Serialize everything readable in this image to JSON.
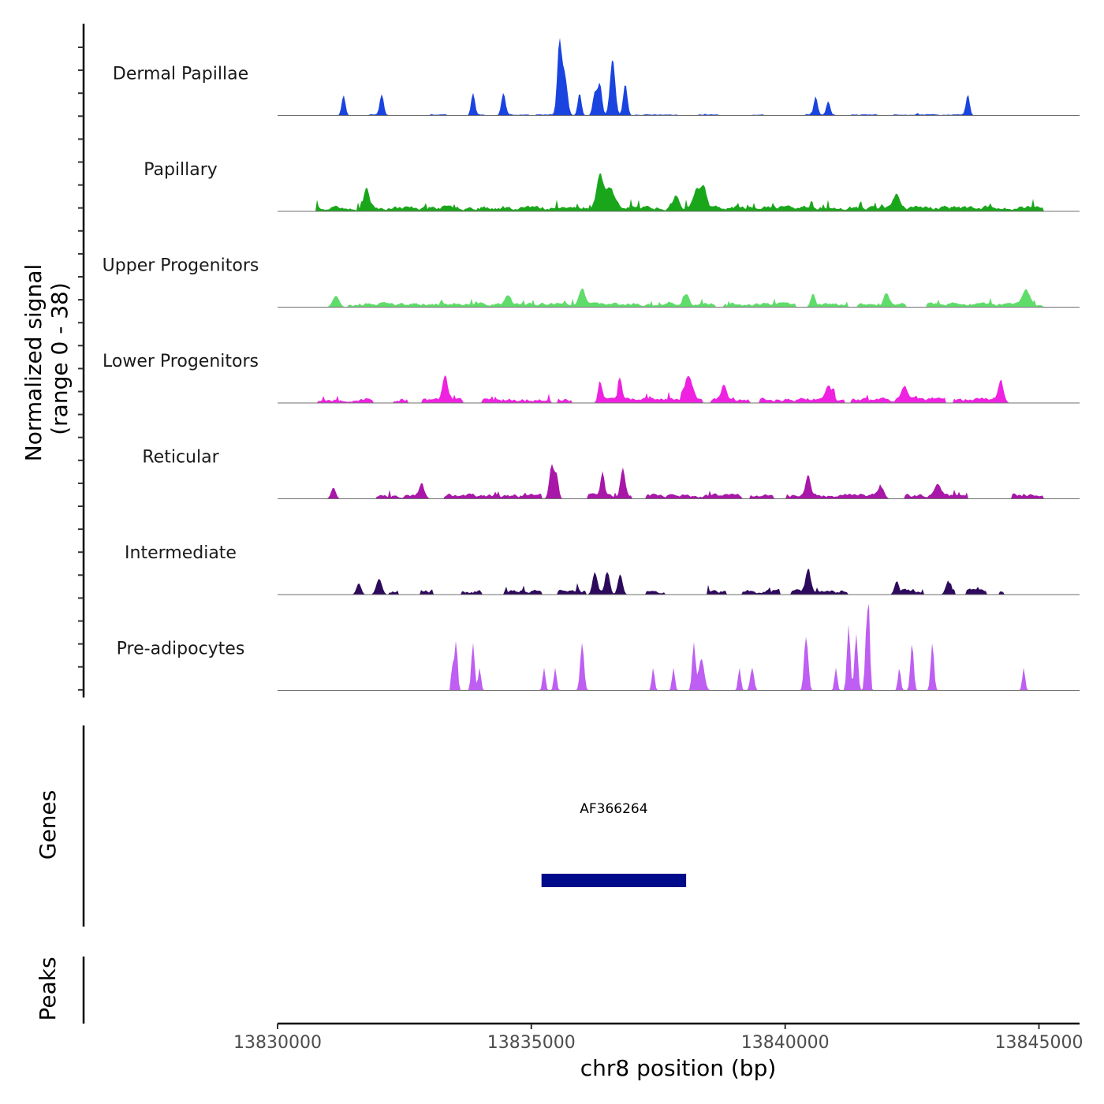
{
  "chart_data": {
    "type": "area",
    "title": "",
    "xlabel": "chr8 position (bp)",
    "ylabel": "Normalized signal",
    "ylabel_sub": "(range 0 - 38)",
    "xlim": [
      13830000,
      13845800
    ],
    "ylim": [
      0,
      38
    ],
    "x_ticks": [
      13830000,
      13835000,
      13840000,
      13845000
    ],
    "x_tick_labels": [
      "13830000",
      "13835000",
      "13840000",
      "13845000"
    ],
    "tracks": [
      {
        "name": "Dermal Papillae",
        "color": "#1a44e0",
        "range": [
          13831000,
          13843800
        ],
        "noise": 0.6,
        "gappy": 0.55,
        "seed": 11,
        "peaks": [
          [
            13835550,
            30,
            45
          ],
          [
            13835650,
            18,
            60
          ],
          [
            13836350,
            14,
            45
          ],
          [
            13836600,
            25,
            55
          ],
          [
            13836850,
            14,
            45
          ],
          [
            13836250,
            10,
            45
          ],
          [
            13835950,
            10,
            40
          ],
          [
            13833850,
            10,
            40
          ],
          [
            13832050,
            9,
            40
          ],
          [
            13834450,
            10,
            45
          ],
          [
            13831300,
            9,
            40
          ],
          [
            13843600,
            9,
            40
          ],
          [
            13840600,
            8,
            40
          ],
          [
            13840850,
            6,
            40
          ]
        ]
      },
      {
        "name": "Papillary",
        "color": "#1aa61a",
        "range": [
          13830750,
          13845100
        ],
        "noise": 2.6,
        "gappy": 0,
        "seed": 23,
        "peaks": [
          [
            13836350,
            15,
            70
          ],
          [
            13836550,
            9,
            90
          ],
          [
            13831750,
            9,
            60
          ],
          [
            13830750,
            7,
            30
          ],
          [
            13838250,
            8,
            70
          ],
          [
            13838400,
            9,
            60
          ],
          [
            13842200,
            6,
            70
          ],
          [
            13837850,
            5,
            60
          ]
        ]
      },
      {
        "name": "Upper Progenitors",
        "color": "#5fdc6a",
        "range": [
          13830750,
          13845100
        ],
        "noise": 2.0,
        "gappy": 0.28,
        "seed": 37,
        "peaks": [
          [
            13831150,
            5,
            70
          ],
          [
            13836000,
            7,
            60
          ],
          [
            13834550,
            4,
            60
          ],
          [
            13838050,
            5,
            60
          ],
          [
            13842000,
            5,
            60
          ],
          [
            13840550,
            6,
            50
          ],
          [
            13844750,
            6,
            80
          ]
        ]
      },
      {
        "name": "Lower Progenitors",
        "color": "#ee22e0",
        "range": [
          13830750,
          13844400
        ],
        "noise": 2.4,
        "gappy": 0.25,
        "seed": 53,
        "peaks": [
          [
            13833300,
            11,
            50
          ],
          [
            13836350,
            10,
            40
          ],
          [
            13836750,
            10,
            40
          ],
          [
            13838100,
            10,
            80
          ],
          [
            13838800,
            7,
            60
          ],
          [
            13840850,
            6,
            70
          ],
          [
            13842350,
            6,
            70
          ],
          [
            13844250,
            9,
            60
          ]
        ]
      },
      {
        "name": "Reticular",
        "color": "#a817a8",
        "range": [
          13830750,
          13845100
        ],
        "noise": 2.3,
        "gappy": 0.42,
        "seed": 71,
        "peaks": [
          [
            13835400,
            15,
            50
          ],
          [
            13835500,
            10,
            40
          ],
          [
            13836400,
            10,
            40
          ],
          [
            13836800,
            12,
            50
          ],
          [
            13840450,
            10,
            50
          ],
          [
            13841900,
            5,
            60
          ],
          [
            13843000,
            6,
            60
          ],
          [
            13831100,
            5,
            50
          ],
          [
            13832850,
            5,
            60
          ]
        ]
      },
      {
        "name": "Intermediate",
        "color": "#2e0a5c",
        "range": [
          13830750,
          13844300
        ],
        "noise": 2.4,
        "gappy": 0.48,
        "seed": 89,
        "peaks": [
          [
            13836250,
            10,
            50
          ],
          [
            13836500,
            10,
            50
          ],
          [
            13836750,
            9,
            50
          ],
          [
            13840450,
            9,
            50
          ],
          [
            13842200,
            6,
            50
          ],
          [
            13832000,
            7,
            60
          ],
          [
            13831600,
            5,
            50
          ],
          [
            13843200,
            5,
            50
          ]
        ]
      },
      {
        "name": "Pre-adipocytes",
        "color": "#be5ef2",
        "range": [
          13833400,
          13844900
        ],
        "noise": 0,
        "gappy": 0,
        "seed": 97,
        "peaks": [
          [
            13833450,
            11,
            35
          ],
          [
            13833520,
            21,
            30
          ],
          [
            13833850,
            21,
            35
          ],
          [
            13833980,
            10,
            30
          ],
          [
            13835250,
            10,
            30
          ],
          [
            13835470,
            10,
            30
          ],
          [
            13836000,
            21,
            40
          ],
          [
            13837400,
            10,
            30
          ],
          [
            13837800,
            10,
            30
          ],
          [
            13838200,
            21,
            35
          ],
          [
            13838350,
            14,
            60
          ],
          [
            13839100,
            10,
            30
          ],
          [
            13839350,
            10,
            40
          ],
          [
            13840400,
            21,
            35
          ],
          [
            13840450,
            10,
            30
          ],
          [
            13841000,
            10,
            30
          ],
          [
            13841250,
            29,
            35
          ],
          [
            13841400,
            25,
            35
          ],
          [
            13841600,
            26,
            30
          ],
          [
            13841650,
            35,
            25
          ],
          [
            13842250,
            10,
            30
          ],
          [
            13842500,
            21,
            35
          ],
          [
            13842900,
            21,
            35
          ],
          [
            13844700,
            10,
            30
          ]
        ]
      }
    ],
    "genes_label": "Genes",
    "genes": [
      {
        "name": "AF366264",
        "start": 13835200,
        "end": 13838050
      }
    ],
    "peaks_label": "Peaks"
  }
}
